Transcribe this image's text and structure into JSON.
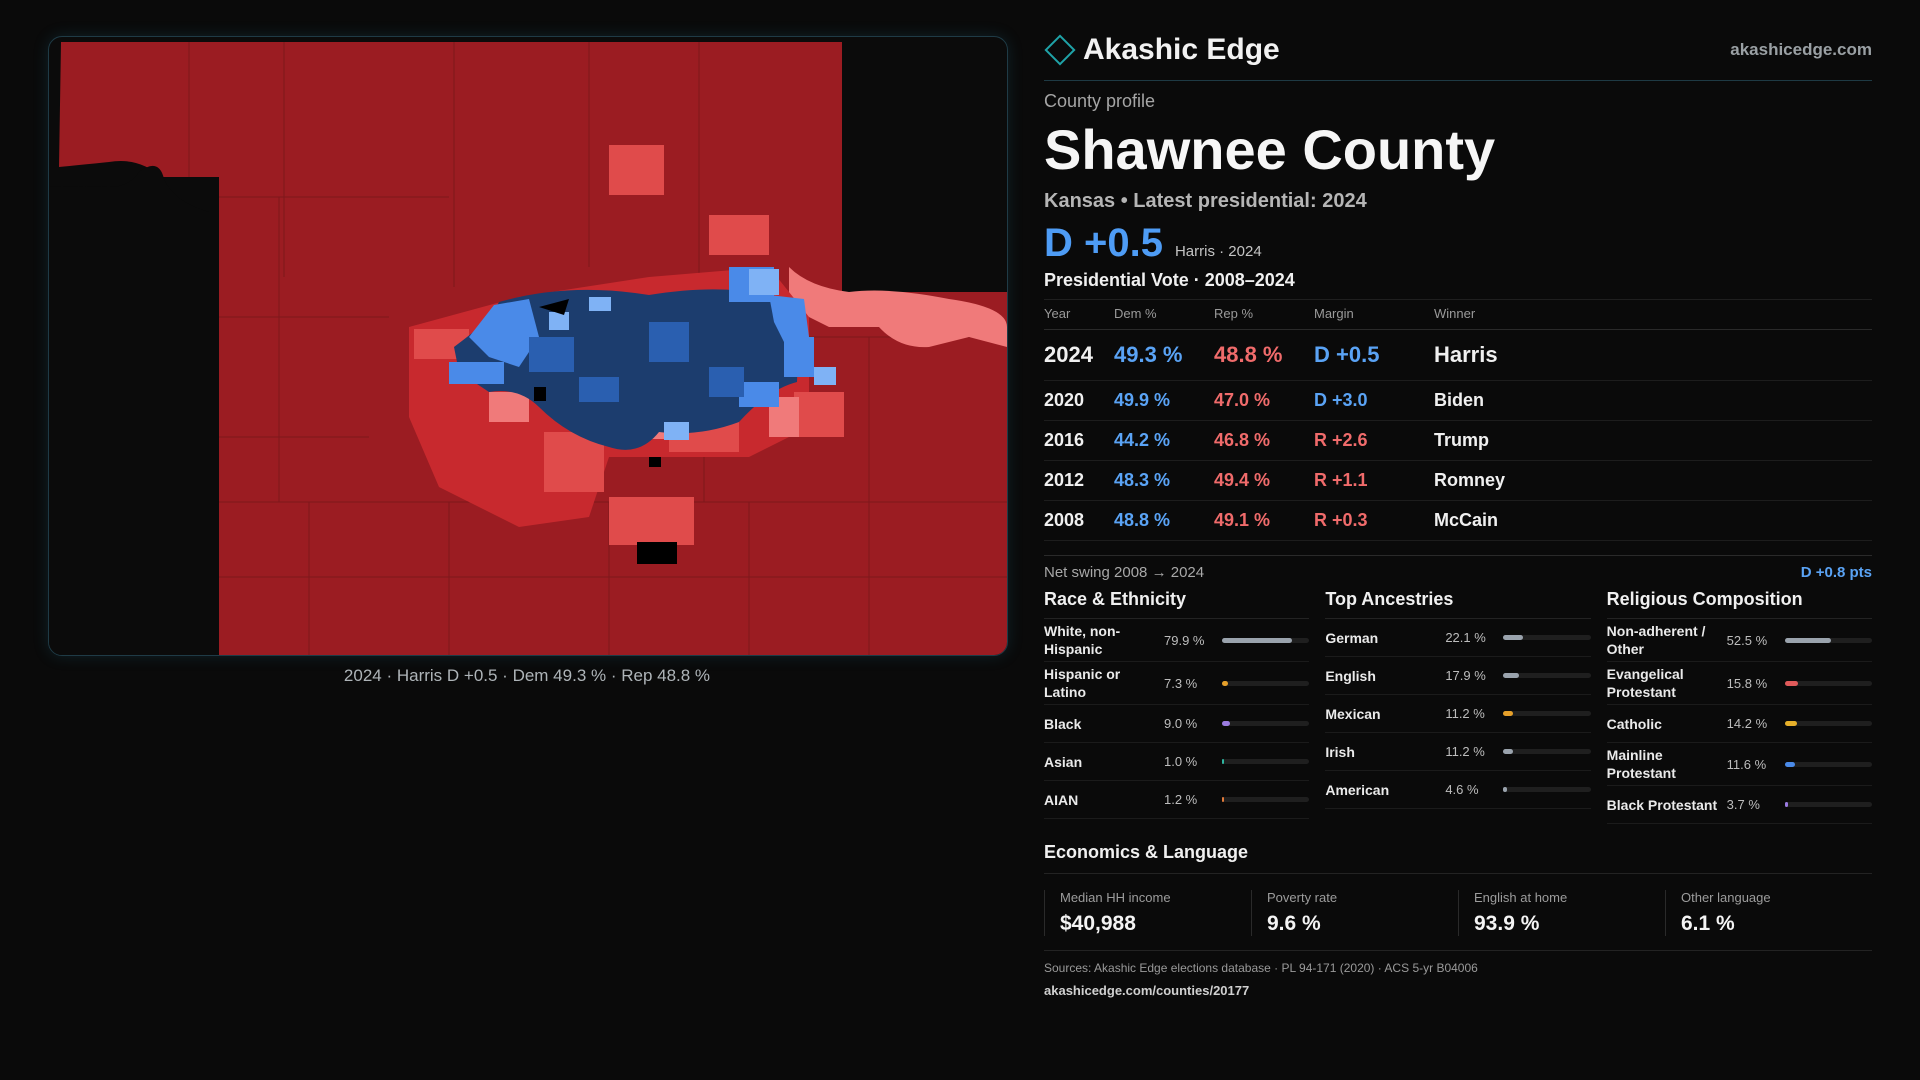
{
  "brand": {
    "name": "Akashic Edge",
    "site": "akashicedge.com"
  },
  "profile": {
    "kicker": "County profile",
    "title": "Shawnee County",
    "subtitle": "Kansas • Latest presidential: 2024",
    "margin": "D +0.5",
    "margin_note": "Harris · 2024"
  },
  "map": {
    "caption": "2024 · Harris D +0.5 · Dem 49.3 % · Rep 48.8 %",
    "colors": {
      "solid_rep": "#9b1c22",
      "lean_rep": "#c8292e",
      "tilt_rep": "#e04b4b",
      "toss_rep": "#f07a7a",
      "toss_dem": "#7fb2f5",
      "tilt_dem": "#4a8ae8",
      "lean_dem": "#2a5fb0",
      "solid_dem": "#1c3d6e",
      "nodata": "#000000"
    }
  },
  "votes": {
    "section_title": "Presidential Vote · 2008–2024",
    "headers": [
      "Year",
      "Dem %",
      "Rep %",
      "Margin",
      "Winner"
    ],
    "rows": [
      {
        "year": "2024",
        "dem": "49.3 %",
        "rep": "48.8 %",
        "margin": "D +0.5",
        "party": "dem",
        "winner": "Harris"
      },
      {
        "year": "2020",
        "dem": "49.9 %",
        "rep": "47.0 %",
        "margin": "D +3.0",
        "party": "dem",
        "winner": "Biden"
      },
      {
        "year": "2016",
        "dem": "44.2 %",
        "rep": "46.8 %",
        "margin": "R +2.6",
        "party": "rep",
        "winner": "Trump"
      },
      {
        "year": "2012",
        "dem": "48.3 %",
        "rep": "49.4 %",
        "margin": "R +1.1",
        "party": "rep",
        "winner": "Romney"
      },
      {
        "year": "2008",
        "dem": "48.8 %",
        "rep": "49.1 %",
        "margin": "R +0.3",
        "party": "rep",
        "winner": "McCain"
      }
    ],
    "swing_label": "Net swing 2008 → 2024",
    "swing_value": "D +0.8 pts"
  },
  "demographics": [
    {
      "title": "Race & Ethnicity",
      "items": [
        {
          "label": "White, non-Hispanic",
          "pct": "79.9 %",
          "value": 79.9,
          "color": "#9aa3ad"
        },
        {
          "label": "Hispanic or Latino",
          "pct": "7.3 %",
          "value": 7.3,
          "color": "#e6a02a"
        },
        {
          "label": "Black",
          "pct": "9.0 %",
          "value": 9.0,
          "color": "#9b7be0"
        },
        {
          "label": "Asian",
          "pct": "1.0 %",
          "value": 1.0,
          "color": "#2fb6a0"
        },
        {
          "label": "AIAN",
          "pct": "1.2 %",
          "value": 1.2,
          "color": "#e07a3a"
        }
      ]
    },
    {
      "title": "Top Ancestries",
      "items": [
        {
          "label": "German",
          "pct": "22.1 %",
          "value": 22.1,
          "color": "#9aa3ad"
        },
        {
          "label": "English",
          "pct": "17.9 %",
          "value": 17.9,
          "color": "#9aa3ad"
        },
        {
          "label": "Mexican",
          "pct": "11.2 %",
          "value": 11.2,
          "color": "#e6a02a"
        },
        {
          "label": "Irish",
          "pct": "11.2 %",
          "value": 11.2,
          "color": "#9aa3ad"
        },
        {
          "label": "American",
          "pct": "4.6 %",
          "value": 4.6,
          "color": "#9aa3ad"
        }
      ]
    },
    {
      "title": "Religious Composition",
      "items": [
        {
          "label": "Non-adherent / Other",
          "pct": "52.5 %",
          "value": 52.5,
          "color": "#9aa3ad"
        },
        {
          "label": "Evangelical Protestant",
          "pct": "15.8 %",
          "value": 15.8,
          "color": "#e05a5a"
        },
        {
          "label": "Catholic",
          "pct": "14.2 %",
          "value": 14.2,
          "color": "#e6b02a"
        },
        {
          "label": "Mainline Protestant",
          "pct": "11.6 %",
          "value": 11.6,
          "color": "#4a8ae8"
        },
        {
          "label": "Black Protestant",
          "pct": "3.7 %",
          "value": 3.7,
          "color": "#9b7be0"
        }
      ]
    }
  ],
  "economics": {
    "title": "Economics & Language",
    "items": [
      {
        "label": "Median HH income",
        "value": "$40,988"
      },
      {
        "label": "Poverty rate",
        "value": "9.6 %"
      },
      {
        "label": "English at home",
        "value": "93.9 %"
      },
      {
        "label": "Other language",
        "value": "6.1 %"
      }
    ]
  },
  "sources": "Sources: Akashic Edge elections database · PL 94-171 (2020) · ACS 5-yr B04006",
  "url": "akashicedge.com/counties/20177"
}
